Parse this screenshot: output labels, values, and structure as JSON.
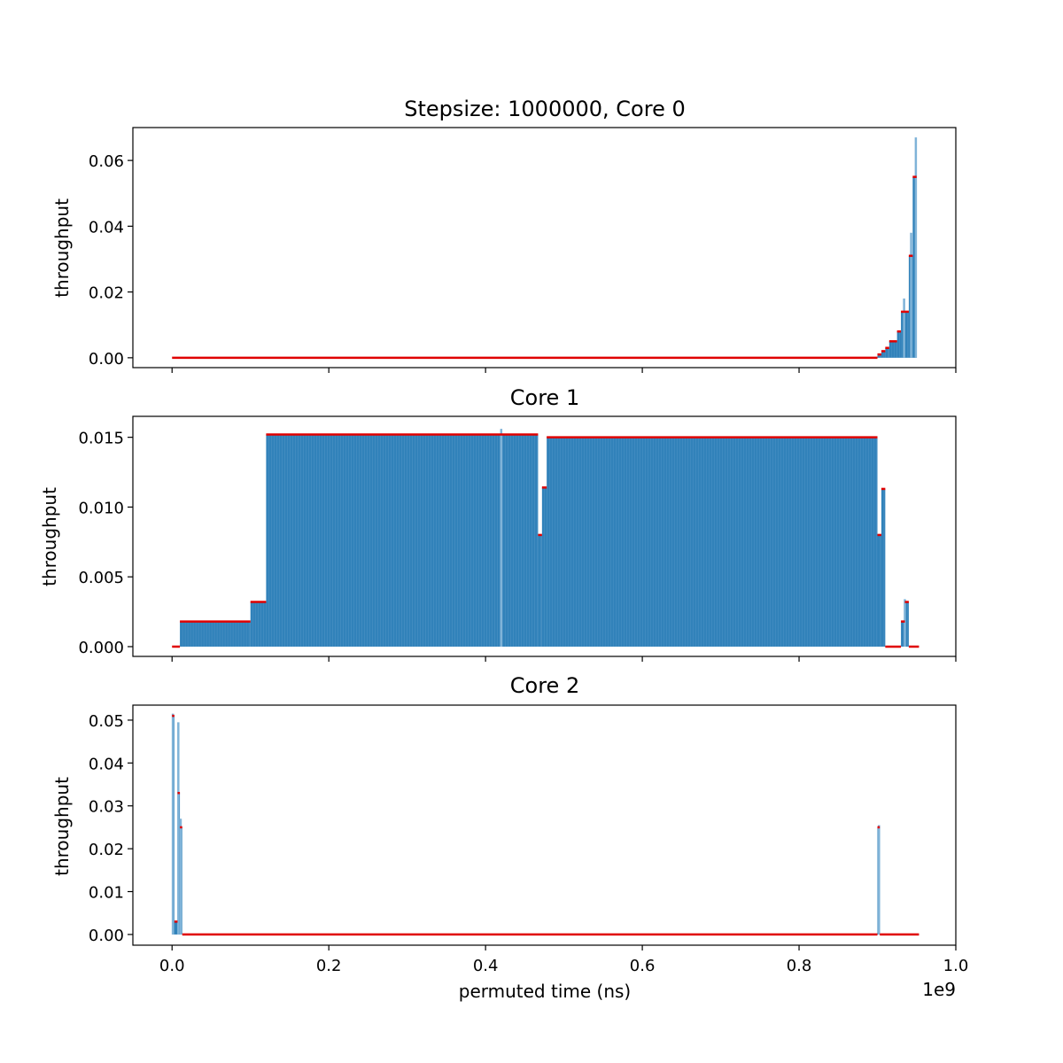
{
  "figure": {
    "offset_label": "1e9",
    "xlabel": "permuted time (ns)",
    "colors": {
      "bar": "#1f77b4",
      "line": "#1f77b4",
      "mean": "#e00000",
      "axis": "#000000"
    }
  },
  "chart_data": [
    {
      "type": "bar",
      "title": "Stepsize: 1000000, Core 0",
      "xlabel": "",
      "ylabel": "throughput",
      "xlim": [
        -0.05,
        1.0
      ],
      "x_scale": "1e9",
      "ylim": [
        -0.003,
        0.07
      ],
      "xticks": [
        "0.0",
        "0.2",
        "0.4",
        "0.6",
        "0.8",
        "1.0"
      ],
      "yticks": [
        "0.00",
        "0.02",
        "0.04",
        "0.06"
      ],
      "ytick_values": [
        0,
        0.02,
        0.04,
        0.06
      ],
      "grid": false,
      "segments": [
        {
          "x0": 0.0,
          "x1": 0.9,
          "y": 0.0
        },
        {
          "x0": 0.9,
          "x1": 0.905,
          "y": 0.001
        },
        {
          "x0": 0.905,
          "x1": 0.91,
          "y": 0.002
        },
        {
          "x0": 0.91,
          "x1": 0.915,
          "y": 0.003
        },
        {
          "x0": 0.915,
          "x1": 0.925,
          "y": 0.005
        },
        {
          "x0": 0.925,
          "x1": 0.93,
          "y": 0.008
        },
        {
          "x0": 0.93,
          "x1": 0.935,
          "y": 0.014
        },
        {
          "x0": 0.935,
          "x1": 0.94,
          "y": 0.014
        },
        {
          "x0": 0.94,
          "x1": 0.945,
          "y": 0.031
        },
        {
          "x0": 0.945,
          "x1": 0.95,
          "y": 0.055
        }
      ],
      "spikes": [
        {
          "x": 0.934,
          "y": 0.018
        },
        {
          "x": 0.943,
          "y": 0.038
        },
        {
          "x": 0.949,
          "y": 0.067
        }
      ]
    },
    {
      "type": "bar",
      "title": "Core 1",
      "xlabel": "",
      "ylabel": "throughput",
      "xlim": [
        -0.05,
        1.0
      ],
      "x_scale": "1e9",
      "ylim": [
        -0.0007,
        0.0165
      ],
      "xticks": [
        "0.0",
        "0.2",
        "0.4",
        "0.6",
        "0.8",
        "1.0"
      ],
      "yticks": [
        "0.000",
        "0.005",
        "0.010",
        "0.015"
      ],
      "ytick_values": [
        0,
        0.005,
        0.01,
        0.015
      ],
      "grid": false,
      "segments": [
        {
          "x0": 0.0,
          "x1": 0.01,
          "y": 0.0
        },
        {
          "x0": 0.01,
          "x1": 0.1,
          "y": 0.0018
        },
        {
          "x0": 0.1,
          "x1": 0.12,
          "y": 0.0032
        },
        {
          "x0": 0.12,
          "x1": 0.467,
          "y": 0.0152
        },
        {
          "x0": 0.467,
          "x1": 0.472,
          "y": 0.008
        },
        {
          "x0": 0.472,
          "x1": 0.478,
          "y": 0.0114
        },
        {
          "x0": 0.478,
          "x1": 0.9,
          "y": 0.015
        },
        {
          "x0": 0.9,
          "x1": 0.905,
          "y": 0.008
        },
        {
          "x0": 0.905,
          "x1": 0.91,
          "y": 0.0113
        },
        {
          "x0": 0.91,
          "x1": 0.93,
          "y": 0.0
        },
        {
          "x0": 0.93,
          "x1": 0.935,
          "y": 0.0018
        },
        {
          "x0": 0.935,
          "x1": 0.94,
          "y": 0.0032
        },
        {
          "x0": 0.94,
          "x1": 0.953,
          "y": 0.0
        }
      ],
      "spikes": [
        {
          "x": 0.42,
          "y": 0.0156
        },
        {
          "x": 0.935,
          "y": 0.0034
        }
      ]
    },
    {
      "type": "bar",
      "title": "Core 2",
      "xlabel": "permuted time (ns)",
      "ylabel": "throughput",
      "xlim": [
        -0.05,
        1.0
      ],
      "x_scale": "1e9",
      "ylim": [
        -0.0025,
        0.0535
      ],
      "xticks": [
        "0.0",
        "0.2",
        "0.4",
        "0.6",
        "0.8",
        "1.0"
      ],
      "yticks": [
        "0.00",
        "0.01",
        "0.02",
        "0.03",
        "0.04",
        "0.05"
      ],
      "ytick_values": [
        0,
        0.01,
        0.02,
        0.03,
        0.04,
        0.05
      ],
      "grid": false,
      "segments": [
        {
          "x0": 0.0,
          "x1": 0.003,
          "y": 0.051
        },
        {
          "x0": 0.003,
          "x1": 0.007,
          "y": 0.003
        },
        {
          "x0": 0.007,
          "x1": 0.01,
          "y": 0.033
        },
        {
          "x0": 0.01,
          "x1": 0.013,
          "y": 0.025
        },
        {
          "x0": 0.013,
          "x1": 0.9,
          "y": 0.0
        },
        {
          "x0": 0.9,
          "x1": 0.903,
          "y": 0.025
        },
        {
          "x0": 0.903,
          "x1": 0.953,
          "y": 0.0
        }
      ],
      "spikes": [
        {
          "x": 0.001,
          "y": 0.0515
        },
        {
          "x": 0.008,
          "y": 0.0495
        },
        {
          "x": 0.011,
          "y": 0.027
        },
        {
          "x": 0.902,
          "y": 0.0255
        }
      ]
    }
  ]
}
